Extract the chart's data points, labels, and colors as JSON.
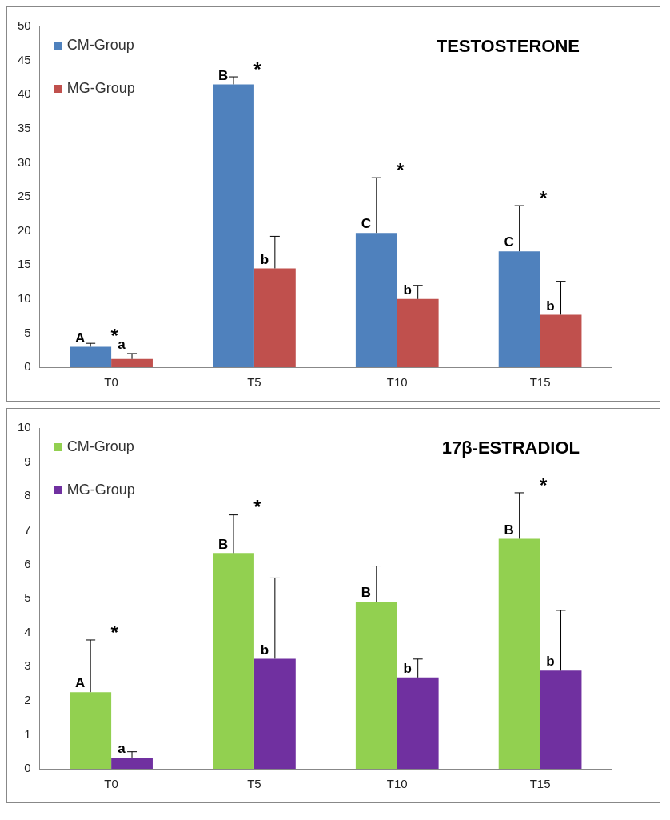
{
  "chart_data": [
    {
      "type": "bar",
      "title": "TESTOSTERONE",
      "categories": [
        "T0",
        "T5",
        "T10",
        "T15"
      ],
      "legend": "top left",
      "ylim": [
        0,
        50
      ],
      "yticks": [
        0,
        5,
        10,
        15,
        20,
        25,
        30,
        35,
        40,
        45,
        50
      ],
      "series": [
        {
          "name": "CM-Group",
          "color": "#4f81bd",
          "values": [
            3.0,
            41.5,
            19.7,
            17.0
          ],
          "errors": [
            [
              3.0,
              3.5
            ],
            [
              41.5,
              42.6
            ],
            [
              19.7,
              27.8
            ],
            [
              17.0,
              23.7
            ]
          ]
        },
        {
          "name": "MG-Group",
          "color": "#c0504d",
          "values": [
            1.2,
            14.5,
            10.0,
            7.7
          ],
          "errors": [
            [
              1.2,
              2.0
            ],
            [
              14.5,
              19.2
            ],
            [
              10.0,
              12.0
            ],
            [
              7.7,
              12.6
            ]
          ]
        }
      ],
      "annotations": [
        {
          "text": "A",
          "x": "T0",
          "y": 3.0
        },
        {
          "text": "*",
          "x": "T0",
          "y": 3.0
        },
        {
          "text": "a",
          "x": "T0",
          "y": 2.0
        },
        {
          "text": "B",
          "x": "T5",
          "y": 41.5
        },
        {
          "text": "*",
          "x": "T5",
          "y": 41.5
        },
        {
          "text": "b",
          "x": "T5",
          "y": 14.5
        },
        {
          "text": "C",
          "x": "T10",
          "y": 19.7
        },
        {
          "text": "*",
          "x": "T10",
          "y": 19.7
        },
        {
          "text": "b",
          "x": "T10",
          "y": 10.0
        },
        {
          "text": "C",
          "x": "T15",
          "y": 17.0
        },
        {
          "text": "*",
          "x": "T15",
          "y": 17.0
        },
        {
          "text": "b",
          "x": "T15",
          "y": 7.7
        }
      ]
    },
    {
      "type": "bar",
      "title": "17β-ESTRADIOL",
      "categories": [
        "T0",
        "T5",
        "T10",
        "T15"
      ],
      "legend": "top left",
      "ylim": [
        0,
        10
      ],
      "yticks": [
        0,
        1,
        2,
        3,
        4,
        5,
        6,
        7,
        8,
        9,
        10
      ],
      "series": [
        {
          "name": "CM-Group",
          "color": "#92d050",
          "values": [
            2.25,
            6.33,
            4.9,
            6.75
          ],
          "errors": [
            [
              2.25,
              3.78
            ],
            [
              6.33,
              7.45
            ],
            [
              4.9,
              5.95
            ],
            [
              6.75,
              8.1
            ]
          ]
        },
        {
          "name": "MG-Group",
          "color": "#7030a0",
          "values": [
            0.33,
            3.23,
            2.68,
            2.88
          ],
          "errors": [
            [
              0.33,
              0.5
            ],
            [
              3.23,
              5.6
            ],
            [
              2.68,
              3.22
            ],
            [
              2.88,
              4.65
            ]
          ]
        }
      ],
      "annotations": [
        {
          "text": "A",
          "x": "T0",
          "y": 2.25
        },
        {
          "text": "*",
          "x": "T0",
          "y": 2.25
        },
        {
          "text": "a",
          "x": "T0",
          "y": 0.33
        },
        {
          "text": "B",
          "x": "T5",
          "y": 6.33
        },
        {
          "text": "*",
          "x": "T5",
          "y": 6.33
        },
        {
          "text": "b",
          "x": "T5",
          "y": 3.23
        },
        {
          "text": "B",
          "x": "T10",
          "y": 4.9
        },
        {
          "text": "b",
          "x": "T10",
          "y": 2.68
        },
        {
          "text": "B",
          "x": "T15",
          "y": 6.75
        },
        {
          "text": "*",
          "x": "T15",
          "y": 6.75
        },
        {
          "text": "b",
          "x": "T15",
          "y": 2.88
        }
      ]
    }
  ]
}
